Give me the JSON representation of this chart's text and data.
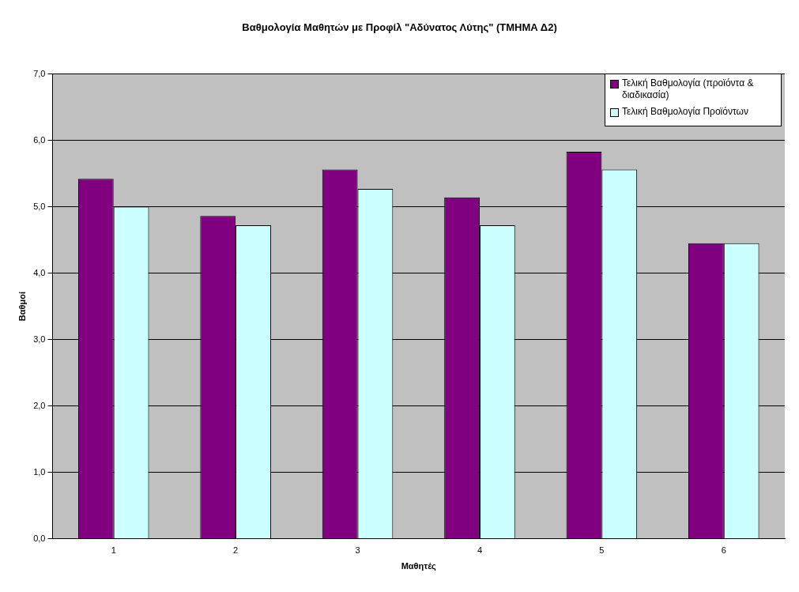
{
  "chart_data": {
    "type": "bar",
    "title": "Βαθμολογία Μαθητών με Προφίλ \"Αδύνατος Λύτης\" (ΤΜΗΜΑ Δ2)",
    "xlabel": "Μαθητές",
    "ylabel": "Βαθμοί",
    "categories": [
      "1",
      "2",
      "3",
      "4",
      "5",
      "6"
    ],
    "series": [
      {
        "name": "Τελική Βαθμολογία (προϊόντα & διαδικασία)",
        "color": "#800080",
        "values": [
          5.42,
          4.86,
          5.56,
          5.14,
          5.83,
          4.45
        ]
      },
      {
        "name": "Τελική Βαθμολογία Προϊόντων",
        "color": "#ccffff",
        "values": [
          5.0,
          4.72,
          5.27,
          4.72,
          5.56,
          4.45
        ]
      }
    ],
    "ylim": [
      0,
      7
    ],
    "yticks": [
      {
        "value": 0,
        "label": "0,0"
      },
      {
        "value": 1,
        "label": "1,0"
      },
      {
        "value": 2,
        "label": "2,0"
      },
      {
        "value": 3,
        "label": "3,0"
      },
      {
        "value": 4,
        "label": "4,0"
      },
      {
        "value": 5,
        "label": "5,0"
      },
      {
        "value": 6,
        "label": "6,0"
      },
      {
        "value": 7,
        "label": "7,0"
      }
    ],
    "grid": "y",
    "legend": "top right"
  }
}
